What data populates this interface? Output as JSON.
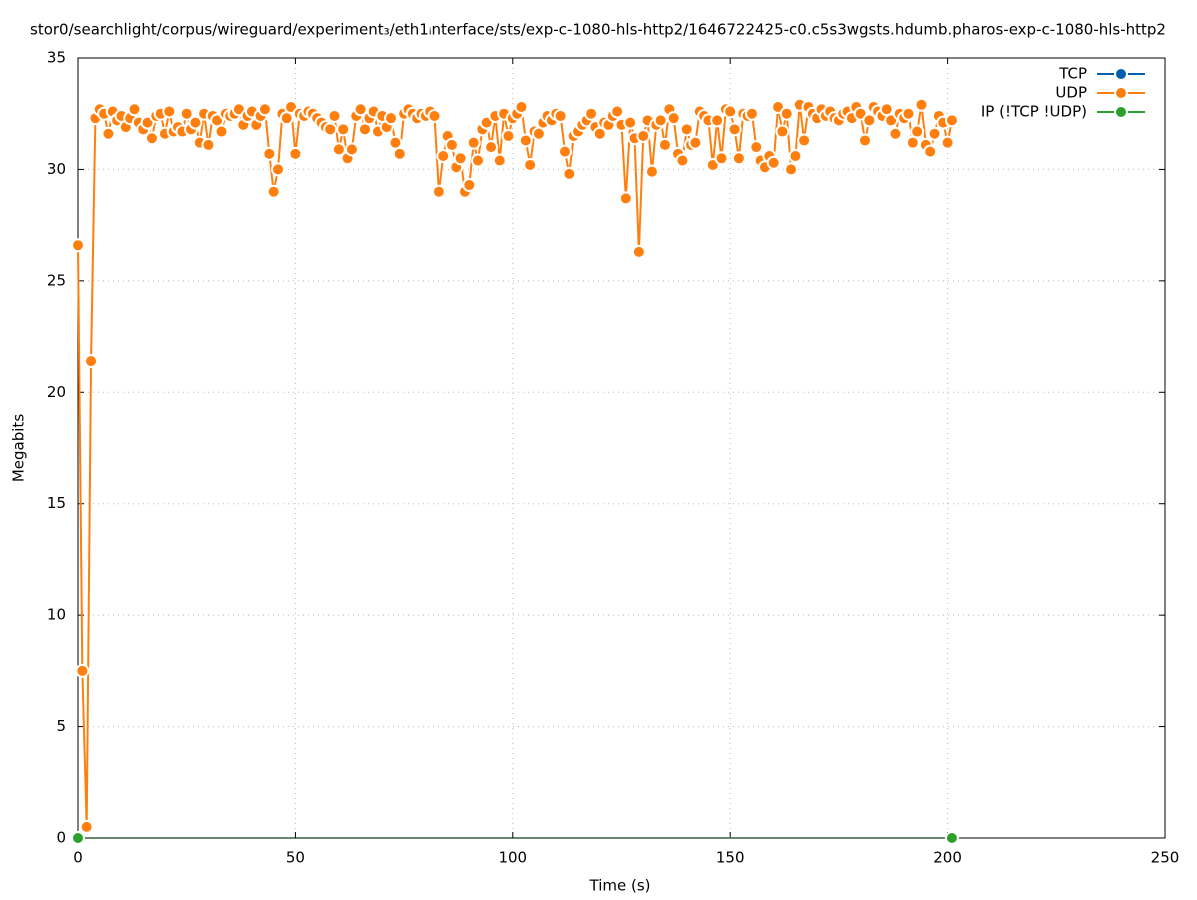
{
  "chart_data": {
    "type": "line",
    "title": "stor0/searchlight/corpus/wireguard/experiment₃/eth1ᵢnterface/sts/exp-c-1080-hls-http2/1646722425-c0.c5s3wgsts.hdumb.pharos-exp-c-1080-hls-http2",
    "x_label": "Time (s)",
    "y_label": "Megabits",
    "xlim": [
      0,
      250
    ],
    "xticks": [
      0,
      50,
      100,
      150,
      200,
      250
    ],
    "ylim": [
      0,
      35
    ],
    "yticks": [
      0,
      5,
      10,
      15,
      20,
      25,
      30,
      35
    ],
    "grid": true,
    "legend": "top-right",
    "series": [
      {
        "name": "TCP",
        "color": "#0060ad",
        "x": [],
        "values": []
      },
      {
        "name": "UDP",
        "color": "#ff7f0e",
        "x": [
          0,
          1,
          2,
          3,
          4,
          5,
          6,
          7,
          8,
          9,
          10,
          11,
          12,
          13,
          14,
          15,
          16,
          17,
          18,
          19,
          20,
          21,
          22,
          23,
          24,
          25,
          26,
          27,
          28,
          29,
          30,
          31,
          32,
          33,
          34,
          35,
          36,
          37,
          38,
          39,
          40,
          41,
          42,
          43,
          44,
          45,
          46,
          47,
          48,
          49,
          50,
          51,
          52,
          53,
          54,
          55,
          56,
          57,
          58,
          59,
          60,
          61,
          62,
          63,
          64,
          65,
          66,
          67,
          68,
          69,
          70,
          71,
          72,
          73,
          74,
          75,
          76,
          77,
          78,
          79,
          80,
          81,
          82,
          83,
          84,
          85,
          86,
          87,
          88,
          89,
          90,
          91,
          92,
          93,
          94,
          95,
          96,
          97,
          98,
          99,
          100,
          101,
          102,
          103,
          104,
          105,
          106,
          107,
          108,
          109,
          110,
          111,
          112,
          113,
          114,
          115,
          116,
          117,
          118,
          119,
          120,
          121,
          122,
          123,
          124,
          125,
          126,
          127,
          128,
          129,
          130,
          131,
          132,
          133,
          134,
          135,
          136,
          137,
          138,
          139,
          140,
          141,
          142,
          143,
          144,
          145,
          146,
          147,
          148,
          149,
          150,
          151,
          152,
          153,
          154,
          155,
          156,
          157,
          158,
          159,
          160,
          161,
          162,
          163,
          164,
          165,
          166,
          167,
          168,
          169,
          170,
          171,
          172,
          173,
          174,
          175,
          176,
          177,
          178,
          179,
          180,
          181,
          182,
          183,
          184,
          185,
          186,
          187,
          188,
          189,
          190,
          191,
          192,
          193,
          194,
          195,
          196,
          197,
          198,
          199,
          200,
          201
        ],
        "values": [
          26.6,
          7.5,
          0.5,
          21.4,
          32.3,
          32.7,
          32.5,
          31.6,
          32.6,
          32.2,
          32.4,
          31.9,
          32.3,
          32.7,
          32.1,
          31.8,
          32.1,
          31.4,
          32.4,
          32.5,
          31.6,
          32.6,
          31.7,
          31.9,
          31.7,
          32.5,
          31.8,
          32.1,
          31.2,
          32.5,
          31.1,
          32.4,
          32.2,
          31.7,
          32.5,
          32.4,
          32.5,
          32.7,
          32.0,
          32.4,
          32.6,
          32.0,
          32.4,
          32.7,
          30.7,
          29.0,
          30.0,
          32.5,
          32.3,
          32.8,
          30.7,
          32.5,
          32.4,
          32.6,
          32.5,
          32.3,
          32.1,
          31.9,
          31.8,
          32.4,
          30.9,
          31.8,
          30.5,
          30.9,
          32.4,
          32.7,
          31.8,
          32.3,
          32.6,
          31.7,
          32.4,
          31.9,
          32.3,
          31.2,
          30.7,
          32.5,
          32.7,
          32.5,
          32.3,
          32.5,
          32.4,
          32.6,
          32.4,
          29.0,
          30.6,
          31.5,
          31.1,
          30.1,
          30.5,
          29.0,
          29.3,
          31.2,
          30.4,
          31.8,
          32.1,
          31.0,
          32.4,
          30.4,
          32.5,
          31.5,
          32.3,
          32.5,
          32.8,
          31.3,
          30.2,
          31.7,
          31.6,
          32.1,
          32.4,
          32.2,
          32.5,
          32.4,
          30.8,
          29.8,
          31.5,
          31.7,
          32.0,
          32.2,
          32.5,
          31.9,
          31.6,
          32.1,
          32.0,
          32.4,
          32.6,
          32.0,
          28.7,
          32.1,
          31.4,
          26.3,
          31.5,
          32.2,
          29.9,
          32.0,
          32.2,
          31.1,
          32.7,
          32.3,
          30.7,
          30.4,
          31.8,
          31.1,
          31.2,
          32.6,
          32.4,
          32.2,
          30.2,
          32.2,
          30.5,
          32.7,
          32.6,
          31.8,
          30.5,
          32.5,
          32.4,
          32.5,
          31.0,
          30.4,
          30.1,
          30.6,
          30.3,
          32.8,
          31.7,
          32.5,
          30.0,
          30.6,
          32.9,
          31.3,
          32.8,
          32.5,
          32.3,
          32.7,
          32.4,
          32.6,
          32.3,
          32.2,
          32.5,
          32.6,
          32.3,
          32.8,
          32.5,
          31.3,
          32.2,
          32.8,
          32.6,
          32.4,
          32.7,
          32.2,
          31.6,
          32.5,
          32.3,
          32.5,
          31.2,
          31.7,
          32.9,
          31.1,
          30.8,
          31.6,
          32.4,
          32.1,
          31.2,
          32.2
        ]
      },
      {
        "name": "IP (!TCP  !UDP)",
        "color": "#2ca02c",
        "x": [
          0,
          201
        ],
        "values": [
          0,
          0
        ]
      }
    ]
  }
}
